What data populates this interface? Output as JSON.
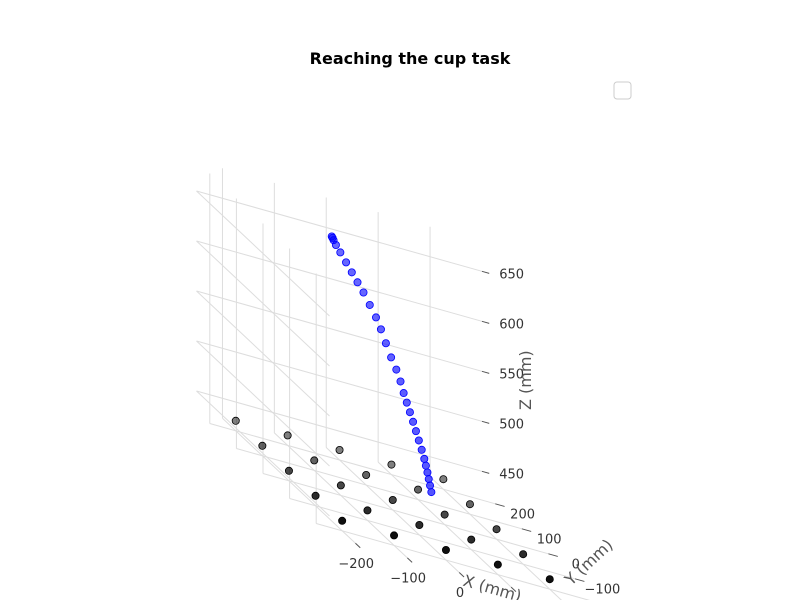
{
  "chart_data": {
    "type": "scatter",
    "title": "Reaching the cup task",
    "xlabel": "X (mm)",
    "ylabel": "Y (mm)",
    "zlabel": "Z (mm)",
    "xlim": [
      -250,
      300
    ],
    "ylim": [
      -250,
      250
    ],
    "zlim": [
      430,
      680
    ],
    "xticks": [
      -200,
      -100,
      0,
      100,
      200
    ],
    "yticks": [
      -200,
      -100,
      0,
      100,
      200
    ],
    "zticks": [
      450,
      500,
      550,
      600,
      650
    ],
    "grid": true,
    "legend": "top-right",
    "series": [
      {
        "marker_color": "#000000",
        "x": [
          -200,
          -100,
          0,
          100,
          200,
          -200,
          -100,
          0,
          100,
          200,
          -200,
          -100,
          0,
          100,
          200,
          -200,
          -100,
          0,
          100,
          200,
          -200,
          -100,
          0,
          100,
          200
        ],
        "y": [
          -200,
          -200,
          -200,
          -200,
          -200,
          -100,
          -100,
          -100,
          -100,
          -100,
          0,
          0,
          0,
          0,
          0,
          100,
          100,
          100,
          100,
          100,
          200,
          200,
          200,
          200,
          200
        ],
        "z": [
          440,
          440,
          440,
          440,
          440,
          440,
          440,
          440,
          440,
          440,
          440,
          440,
          440,
          440,
          440,
          440,
          440,
          440,
          440,
          440,
          440,
          440,
          440,
          440,
          440
        ]
      },
      {
        "marker_color": "#0000ff",
        "x": [
          100,
          98,
          96,
          94,
          92,
          90,
          86,
          82,
          78,
          74,
          70,
          66,
          62,
          58,
          52,
          44,
          36,
          28,
          20,
          10,
          0,
          -10,
          -20,
          -30,
          -40,
          -48,
          -52,
          -54,
          -55
        ],
        "y": [
          50,
          51,
          52,
          53,
          55,
          57,
          59,
          62,
          65,
          68,
          72,
          76,
          80,
          84,
          88,
          92,
          96,
          99,
          102,
          106,
          110,
          113,
          115,
          117,
          119,
          120,
          121,
          121,
          122
        ],
        "z": [
          450,
          456,
          462,
          468,
          474,
          480,
          488,
          496,
          504,
          512,
          520,
          528,
          536,
          546,
          556,
          566,
          578,
          590,
          600,
          610,
          620,
          628,
          636,
          644,
          652,
          658,
          662,
          664,
          665
        ]
      }
    ]
  }
}
